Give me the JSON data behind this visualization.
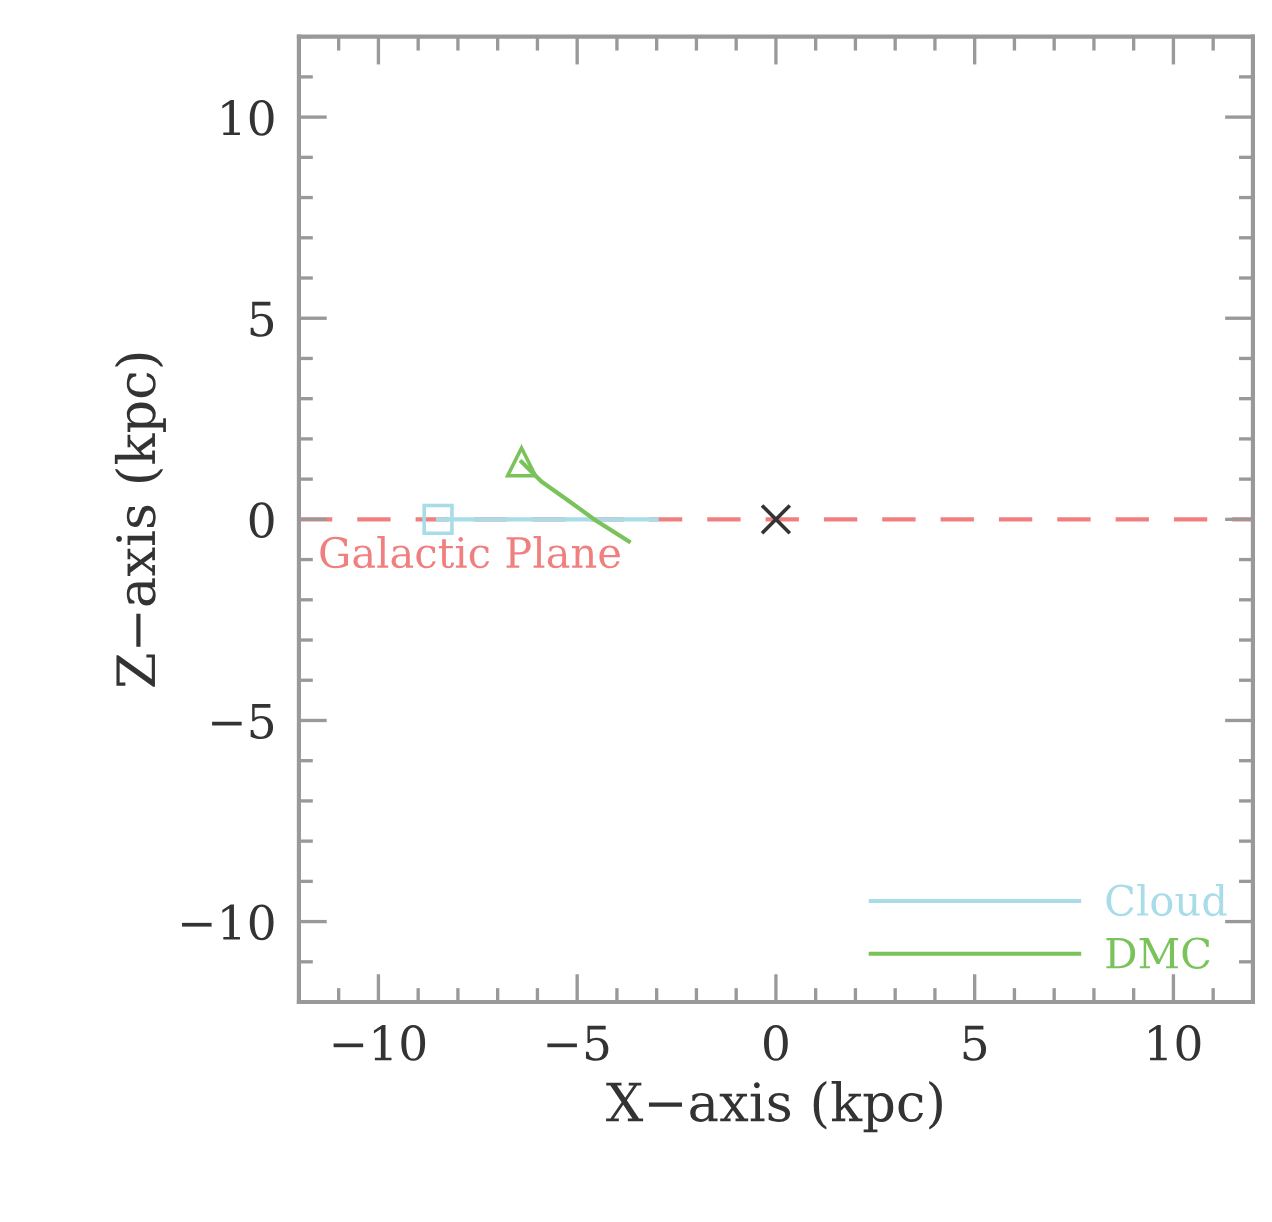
{
  "chart_data": {
    "type": "line",
    "xlabel": "X−axis (kpc)",
    "ylabel": "Z−axis (kpc)",
    "xlim": [
      -12,
      12
    ],
    "ylim": [
      -12,
      12
    ],
    "xticks": [
      {
        "value": -10,
        "label": "−10"
      },
      {
        "value": -5,
        "label": "−5"
      },
      0,
      5,
      10
    ],
    "yticks": [
      {
        "value": -10,
        "label": "−10"
      },
      {
        "value": -5,
        "label": "−5"
      },
      0,
      5,
      10
    ],
    "grid": false,
    "legend": "bottom right",
    "series": [
      {
        "name": "Cloud",
        "color": "#a8dce8",
        "marker": "none",
        "x": [
          -8.5,
          -3.0
        ],
        "values": [
          0,
          0
        ]
      },
      {
        "name": "DMC",
        "color": "#7ac35a",
        "marker": "none",
        "x": [
          -6.4,
          -5.9,
          -5.2,
          -4.5,
          -3.7
        ],
        "values": [
          1.43,
          0.94,
          0.45,
          -0.05,
          -0.55
        ]
      },
      {
        "color": "#a8dce8",
        "type": "scatter",
        "marker": "square",
        "x": [
          -8.5
        ],
        "values": [
          0
        ]
      },
      {
        "color": "#7ac35a",
        "type": "scatter",
        "marker": "triangle",
        "x": [
          -6.4
        ],
        "values": [
          1.43
        ]
      },
      {
        "color": "#333333",
        "type": "scatter",
        "marker": "cross",
        "x": [
          0
        ],
        "values": [
          0
        ]
      }
    ],
    "ref_lines": [
      {
        "axis": "y",
        "value": 0,
        "label": "Galactic Plane",
        "color": "#f08080",
        "line_style": "dashed"
      }
    ]
  }
}
